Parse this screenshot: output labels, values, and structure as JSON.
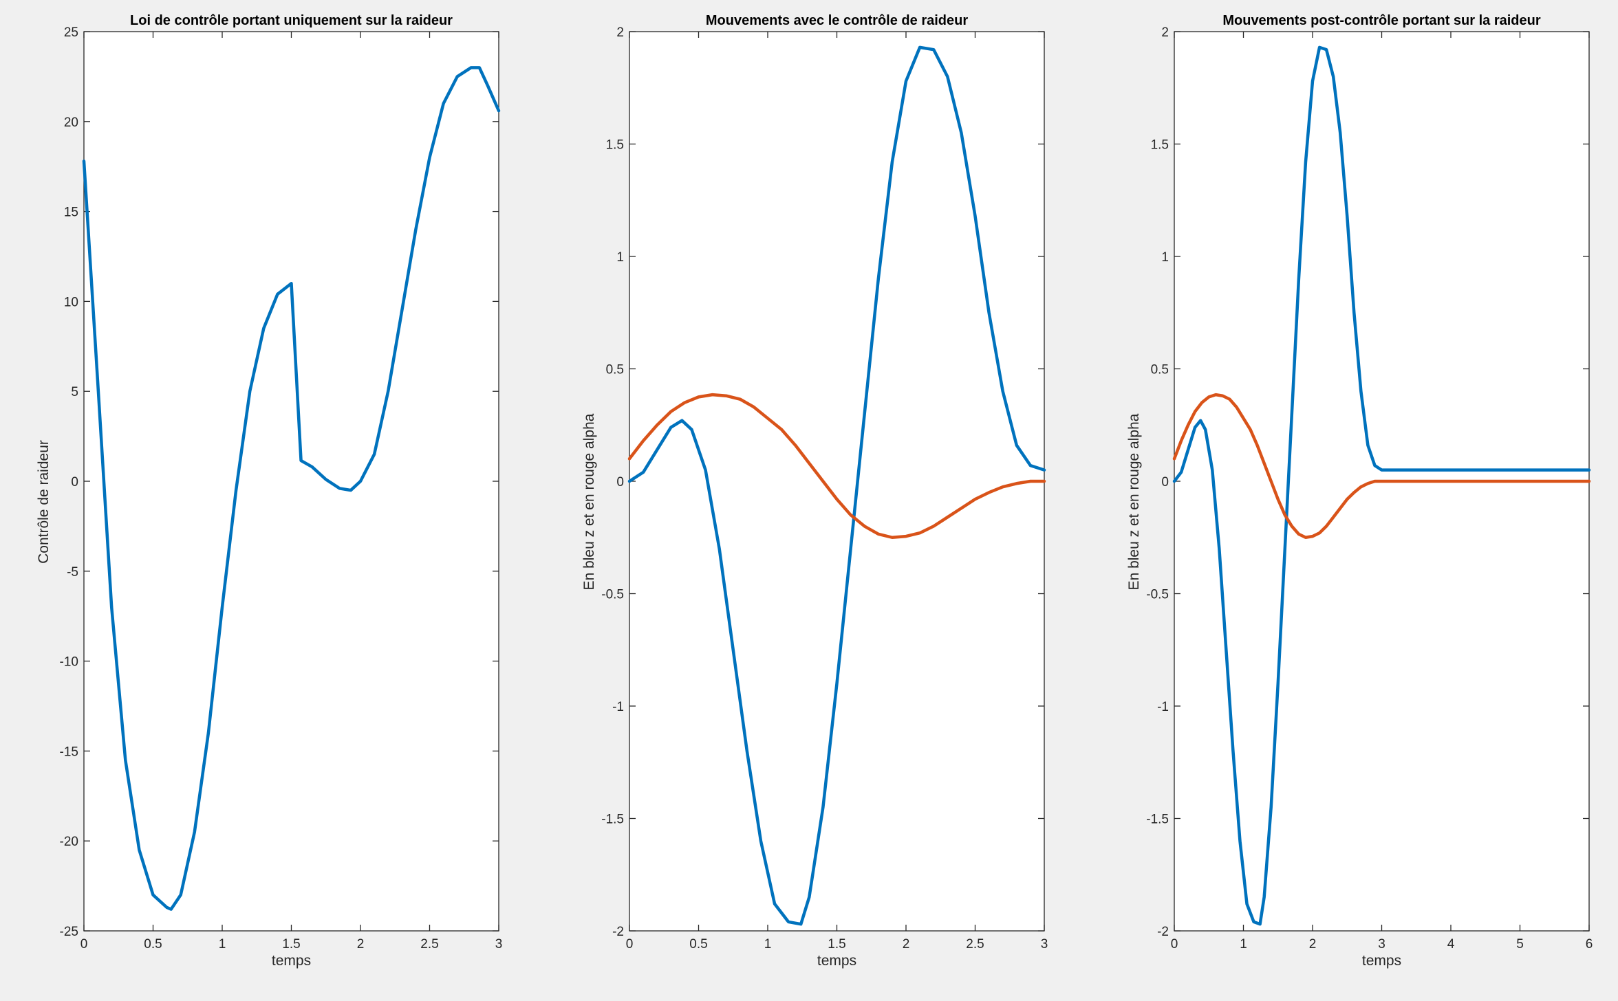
{
  "colors": {
    "background": "#f0f0f0",
    "axes_face": "#ffffff",
    "axes_edge": "#262626",
    "series_blue": "#0072bd",
    "series_red": "#d95319"
  },
  "chart_data": [
    {
      "type": "line",
      "title": "Loi de contrôle portant uniquement sur la raideur",
      "xlabel": "temps",
      "ylabel": "Contrôle de raideur",
      "xlim": [
        0,
        3
      ],
      "ylim": [
        -25,
        25
      ],
      "xticks": [
        0,
        0.5,
        1,
        1.5,
        2,
        2.5,
        3
      ],
      "xtick_labels": [
        "0",
        "0.5",
        "1",
        "1.5",
        "2",
        "2.5",
        "3"
      ],
      "yticks": [
        -25,
        -20,
        -15,
        -10,
        -5,
        0,
        5,
        10,
        15,
        20,
        25
      ],
      "ytick_labels": [
        "-25",
        "-20",
        "-15",
        "-10",
        "-5",
        "0",
        "5",
        "10",
        "15",
        "20",
        "25"
      ],
      "grid": false,
      "series": [
        {
          "color": "#0072bd",
          "x": [
            0,
            0.1,
            0.2,
            0.3,
            0.4,
            0.5,
            0.6,
            0.63,
            0.7,
            0.8,
            0.9,
            1.0,
            1.1,
            1.2,
            1.3,
            1.4,
            1.5,
            1.57,
            1.65,
            1.75,
            1.85,
            1.93,
            2.0,
            2.1,
            2.2,
            2.3,
            2.4,
            2.5,
            2.6,
            2.7,
            2.8,
            2.86,
            2.92,
            3.0
          ],
          "y": [
            17.8,
            5.5,
            -7.0,
            -15.5,
            -20.5,
            -23.0,
            -23.7,
            -23.8,
            -23.0,
            -19.5,
            -14.0,
            -7.0,
            -0.5,
            5.0,
            8.5,
            10.4,
            11.0,
            1.15,
            0.8,
            0.1,
            -0.4,
            -0.5,
            0.0,
            1.5,
            5.0,
            9.5,
            14.0,
            18.0,
            21.0,
            22.5,
            23.0,
            23.0,
            22.0,
            20.6
          ]
        }
      ]
    },
    {
      "type": "line",
      "title": "Mouvements avec le contrôle de raideur",
      "xlabel": "temps",
      "ylabel": "En bleu z et en rouge alpha",
      "xlim": [
        0,
        3
      ],
      "ylim": [
        -2,
        2
      ],
      "xticks": [
        0,
        0.5,
        1,
        1.5,
        2,
        2.5,
        3
      ],
      "xtick_labels": [
        "0",
        "0.5",
        "1",
        "1.5",
        "2",
        "2.5",
        "3"
      ],
      "yticks": [
        -2,
        -1.5,
        -1,
        -0.5,
        0,
        0.5,
        1,
        1.5,
        2
      ],
      "ytick_labels": [
        "-2",
        "-1.5",
        "-1",
        "-0.5",
        "0",
        "0.5",
        "1",
        "1.5",
        "2"
      ],
      "grid": false,
      "series": [
        {
          "color": "#0072bd",
          "x": [
            0,
            0.1,
            0.2,
            0.3,
            0.38,
            0.45,
            0.55,
            0.65,
            0.75,
            0.85,
            0.95,
            1.05,
            1.15,
            1.24,
            1.3,
            1.4,
            1.5,
            1.6,
            1.7,
            1.8,
            1.9,
            2.0,
            2.1,
            2.2,
            2.3,
            2.4,
            2.5,
            2.6,
            2.7,
            2.8,
            2.9,
            3.0
          ],
          "y": [
            0.0,
            0.04,
            0.14,
            0.24,
            0.27,
            0.23,
            0.05,
            -0.3,
            -0.75,
            -1.2,
            -1.6,
            -1.88,
            -1.96,
            -1.97,
            -1.85,
            -1.45,
            -0.9,
            -0.3,
            0.3,
            0.9,
            1.42,
            1.78,
            1.93,
            1.92,
            1.8,
            1.55,
            1.18,
            0.75,
            0.4,
            0.16,
            0.07,
            0.05
          ]
        },
        {
          "color": "#d95319",
          "x": [
            0,
            0.1,
            0.2,
            0.3,
            0.4,
            0.5,
            0.6,
            0.7,
            0.8,
            0.9,
            1.0,
            1.1,
            1.2,
            1.3,
            1.4,
            1.5,
            1.6,
            1.7,
            1.8,
            1.9,
            2.0,
            2.1,
            2.2,
            2.3,
            2.4,
            2.5,
            2.6,
            2.7,
            2.8,
            2.9,
            3.0
          ],
          "y": [
            0.1,
            0.18,
            0.25,
            0.31,
            0.35,
            0.375,
            0.385,
            0.38,
            0.365,
            0.33,
            0.28,
            0.23,
            0.16,
            0.08,
            0.0,
            -0.08,
            -0.15,
            -0.2,
            -0.235,
            -0.25,
            -0.245,
            -0.23,
            -0.2,
            -0.16,
            -0.12,
            -0.08,
            -0.05,
            -0.025,
            -0.01,
            0.0,
            0.0
          ]
        }
      ]
    },
    {
      "type": "line",
      "title": "Mouvements post-contrôle portant sur la raideur",
      "xlabel": "temps",
      "ylabel": "En bleu z et en rouge alpha",
      "xlim": [
        0,
        6
      ],
      "ylim": [
        -2,
        2
      ],
      "xticks": [
        0,
        1,
        2,
        3,
        4,
        5,
        6
      ],
      "xtick_labels": [
        "0",
        "1",
        "2",
        "3",
        "4",
        "5",
        "6"
      ],
      "yticks": [
        -2,
        -1.5,
        -1,
        -0.5,
        0,
        0.5,
        1,
        1.5,
        2
      ],
      "ytick_labels": [
        "-2",
        "-1.5",
        "-1",
        "-0.5",
        "0",
        "0.5",
        "1",
        "1.5",
        "2"
      ],
      "grid": false,
      "series": [
        {
          "color": "#0072bd",
          "x": [
            0,
            0.1,
            0.2,
            0.3,
            0.38,
            0.45,
            0.55,
            0.65,
            0.75,
            0.85,
            0.95,
            1.05,
            1.15,
            1.24,
            1.3,
            1.4,
            1.5,
            1.6,
            1.7,
            1.8,
            1.9,
            2.0,
            2.1,
            2.2,
            2.3,
            2.4,
            2.5,
            2.6,
            2.7,
            2.8,
            2.9,
            3.0,
            3.5,
            4.0,
            4.5,
            5.0,
            5.5,
            6.0
          ],
          "y": [
            0.0,
            0.04,
            0.14,
            0.24,
            0.27,
            0.23,
            0.05,
            -0.3,
            -0.75,
            -1.2,
            -1.6,
            -1.88,
            -1.96,
            -1.97,
            -1.85,
            -1.45,
            -0.9,
            -0.3,
            0.3,
            0.9,
            1.42,
            1.78,
            1.93,
            1.92,
            1.8,
            1.55,
            1.18,
            0.75,
            0.4,
            0.16,
            0.07,
            0.05,
            0.05,
            0.05,
            0.05,
            0.05,
            0.05,
            0.05
          ]
        },
        {
          "color": "#d95319",
          "x": [
            0,
            0.1,
            0.2,
            0.3,
            0.4,
            0.5,
            0.6,
            0.7,
            0.8,
            0.9,
            1.0,
            1.1,
            1.2,
            1.3,
            1.4,
            1.5,
            1.6,
            1.7,
            1.8,
            1.9,
            2.0,
            2.1,
            2.2,
            2.3,
            2.4,
            2.5,
            2.6,
            2.7,
            2.8,
            2.9,
            3.0,
            3.5,
            4.0,
            4.5,
            5.0,
            5.5,
            6.0
          ],
          "y": [
            0.1,
            0.18,
            0.25,
            0.31,
            0.35,
            0.375,
            0.385,
            0.38,
            0.365,
            0.33,
            0.28,
            0.23,
            0.16,
            0.08,
            0.0,
            -0.08,
            -0.15,
            -0.2,
            -0.235,
            -0.25,
            -0.245,
            -0.23,
            -0.2,
            -0.16,
            -0.12,
            -0.08,
            -0.05,
            -0.025,
            -0.01,
            0.0,
            0.0,
            0.0,
            0.0,
            0.0,
            0.0,
            0.0,
            0.0
          ]
        }
      ]
    }
  ]
}
